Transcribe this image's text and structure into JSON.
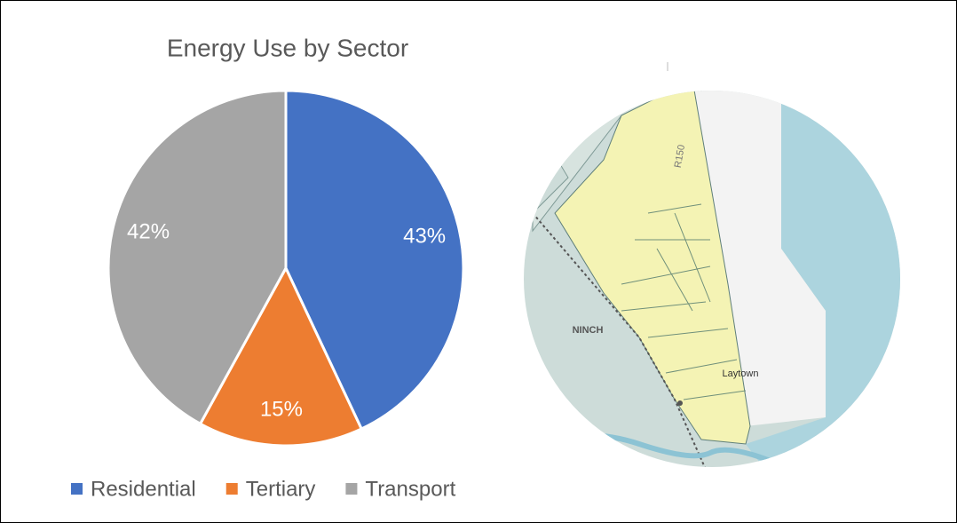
{
  "chart_data": {
    "type": "pie",
    "title": "Energy Use by Sector",
    "categories": [
      "Residential",
      "Tertiary",
      "Transport"
    ],
    "values": [
      43,
      15,
      42
    ],
    "value_labels": [
      "43%",
      "15%",
      "42%"
    ],
    "colors": [
      "#4472c4",
      "#ed7d31",
      "#a5a5a5"
    ],
    "legend": "bottom"
  },
  "map": {
    "labels": [
      "R150",
      "NINCH",
      "Laytown"
    ]
  }
}
